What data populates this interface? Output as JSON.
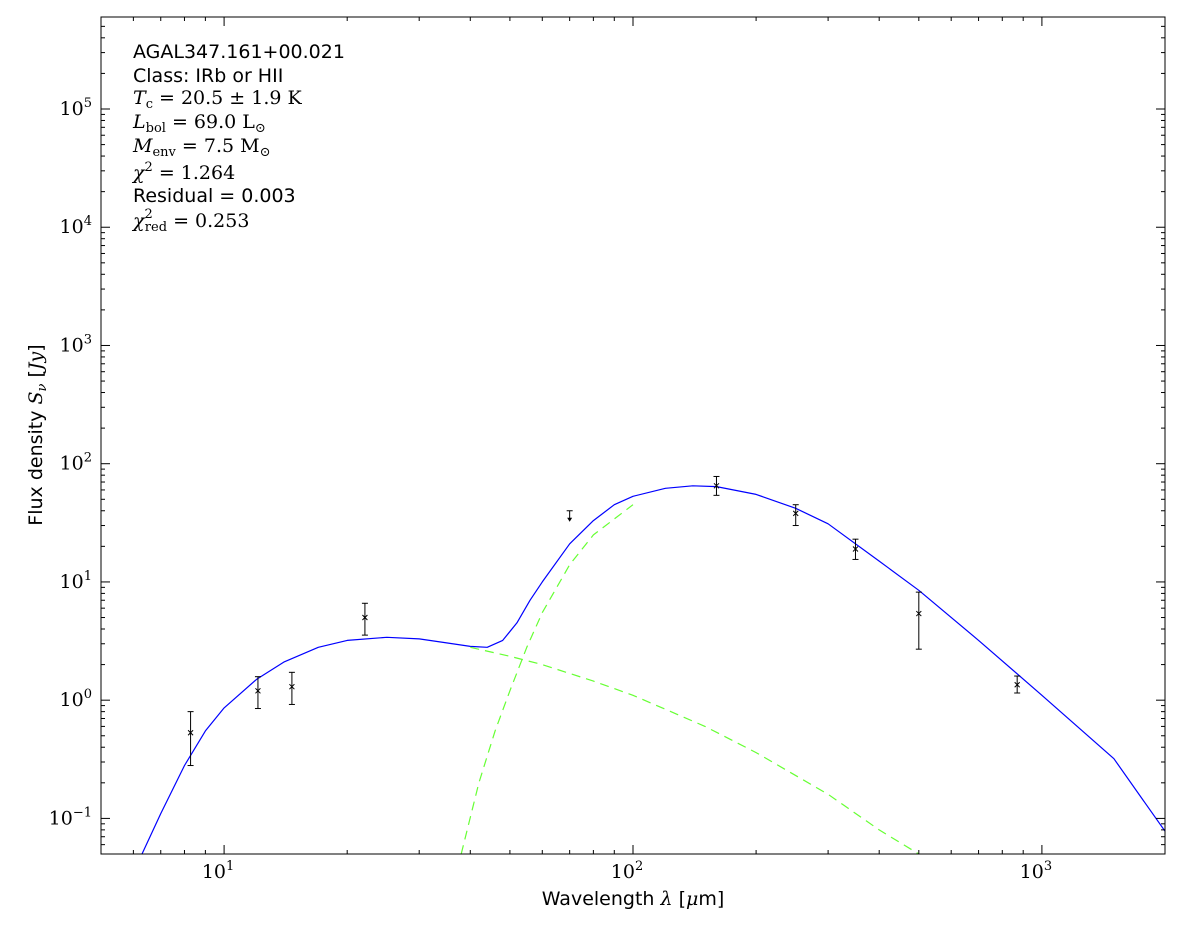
{
  "chart_data": {
    "type": "line",
    "xscale": "log",
    "yscale": "log",
    "xlim": [
      5,
      2000
    ],
    "ylim": [
      0.05,
      600000
    ],
    "xlabel": "Wavelength λ [μm]",
    "ylabel": "Flux density S_ν [Jy]",
    "x_ticks": [
      {
        "value": 10,
        "base": "10",
        "exp": "1"
      },
      {
        "value": 100,
        "base": "10",
        "exp": "2"
      },
      {
        "value": 1000,
        "base": "10",
        "exp": "3"
      }
    ],
    "y_ticks": [
      {
        "value": 0.1,
        "base": "10",
        "exp": "−1"
      },
      {
        "value": 1,
        "base": "10",
        "exp": "0"
      },
      {
        "value": 10,
        "base": "10",
        "exp": "1"
      },
      {
        "value": 100,
        "base": "10",
        "exp": "2"
      },
      {
        "value": 1000,
        "base": "10",
        "exp": "3"
      },
      {
        "value": 10000,
        "base": "10",
        "exp": "4"
      },
      {
        "value": 100000,
        "base": "10",
        "exp": "5"
      }
    ],
    "annotations": {
      "name": "AGAL347.161+00.021",
      "class": "Class: IRb or HII",
      "tc": "T_c = 20.5 ± 1.9 K",
      "lbol": "L_bol = 69.0 L_⊙",
      "menv": "M_env = 7.5 M_⊙",
      "chi2": "χ² = 1.264",
      "residual": "Residual = 0.003",
      "chi2red": "χ²_red = 0.253"
    },
    "colors": {
      "total": "#0000ff",
      "components": "#66ff33",
      "data": "#000000"
    },
    "data_points": [
      {
        "x": 8.28,
        "y": 0.53,
        "ylo": 0.28,
        "yhi": 0.8
      },
      {
        "x": 12.1,
        "y": 1.2,
        "ylo": 0.85,
        "yhi": 1.58
      },
      {
        "x": 14.65,
        "y": 1.3,
        "ylo": 0.92,
        "yhi": 1.72
      },
      {
        "x": 22.1,
        "y": 5.0,
        "ylo": 3.55,
        "yhi": 6.6
      },
      {
        "x": 160,
        "y": 65,
        "ylo": 54,
        "yhi": 78
      },
      {
        "x": 250,
        "y": 38,
        "ylo": 30,
        "yhi": 45
      },
      {
        "x": 350,
        "y": 19,
        "ylo": 15.5,
        "yhi": 23
      },
      {
        "x": 500,
        "y": 5.4,
        "ylo": 2.7,
        "yhi": 8.2
      },
      {
        "x": 870,
        "y": 1.35,
        "ylo": 1.15,
        "yhi": 1.6
      }
    ],
    "upper_limits": [
      {
        "x": 70,
        "y": 40
      }
    ],
    "series": [
      {
        "style": "solid",
        "x": [
          6.3,
          7,
          8,
          9,
          10,
          12,
          14,
          17,
          20,
          25,
          30,
          35,
          40,
          44,
          48,
          52,
          56,
          60,
          70,
          80,
          90,
          100,
          120,
          140,
          160,
          200,
          250,
          300,
          400,
          500,
          700,
          1000,
          1500,
          2000
        ],
        "y": [
          0.05,
          0.11,
          0.28,
          0.55,
          0.86,
          1.5,
          2.1,
          2.8,
          3.2,
          3.4,
          3.3,
          3.05,
          2.85,
          2.8,
          3.2,
          4.5,
          7.0,
          10,
          21,
          33,
          45,
          53,
          62,
          65,
          64,
          55,
          42,
          31,
          15,
          8.5,
          3.2,
          1.1,
          0.32,
          0.078
        ]
      },
      {
        "style": "dashed",
        "x": [
          40,
          50,
          60,
          80,
          100,
          150,
          200,
          300,
          400,
          500
        ],
        "y": [
          2.8,
          2.35,
          2.0,
          1.45,
          1.1,
          0.6,
          0.36,
          0.16,
          0.08,
          0.05
        ]
      },
      {
        "style": "dashed",
        "x": [
          38,
          42,
          46,
          50,
          55,
          60,
          70,
          80,
          100
        ],
        "y": [
          0.05,
          0.2,
          0.55,
          1.2,
          2.8,
          5.5,
          14,
          25,
          45
        ]
      }
    ]
  }
}
